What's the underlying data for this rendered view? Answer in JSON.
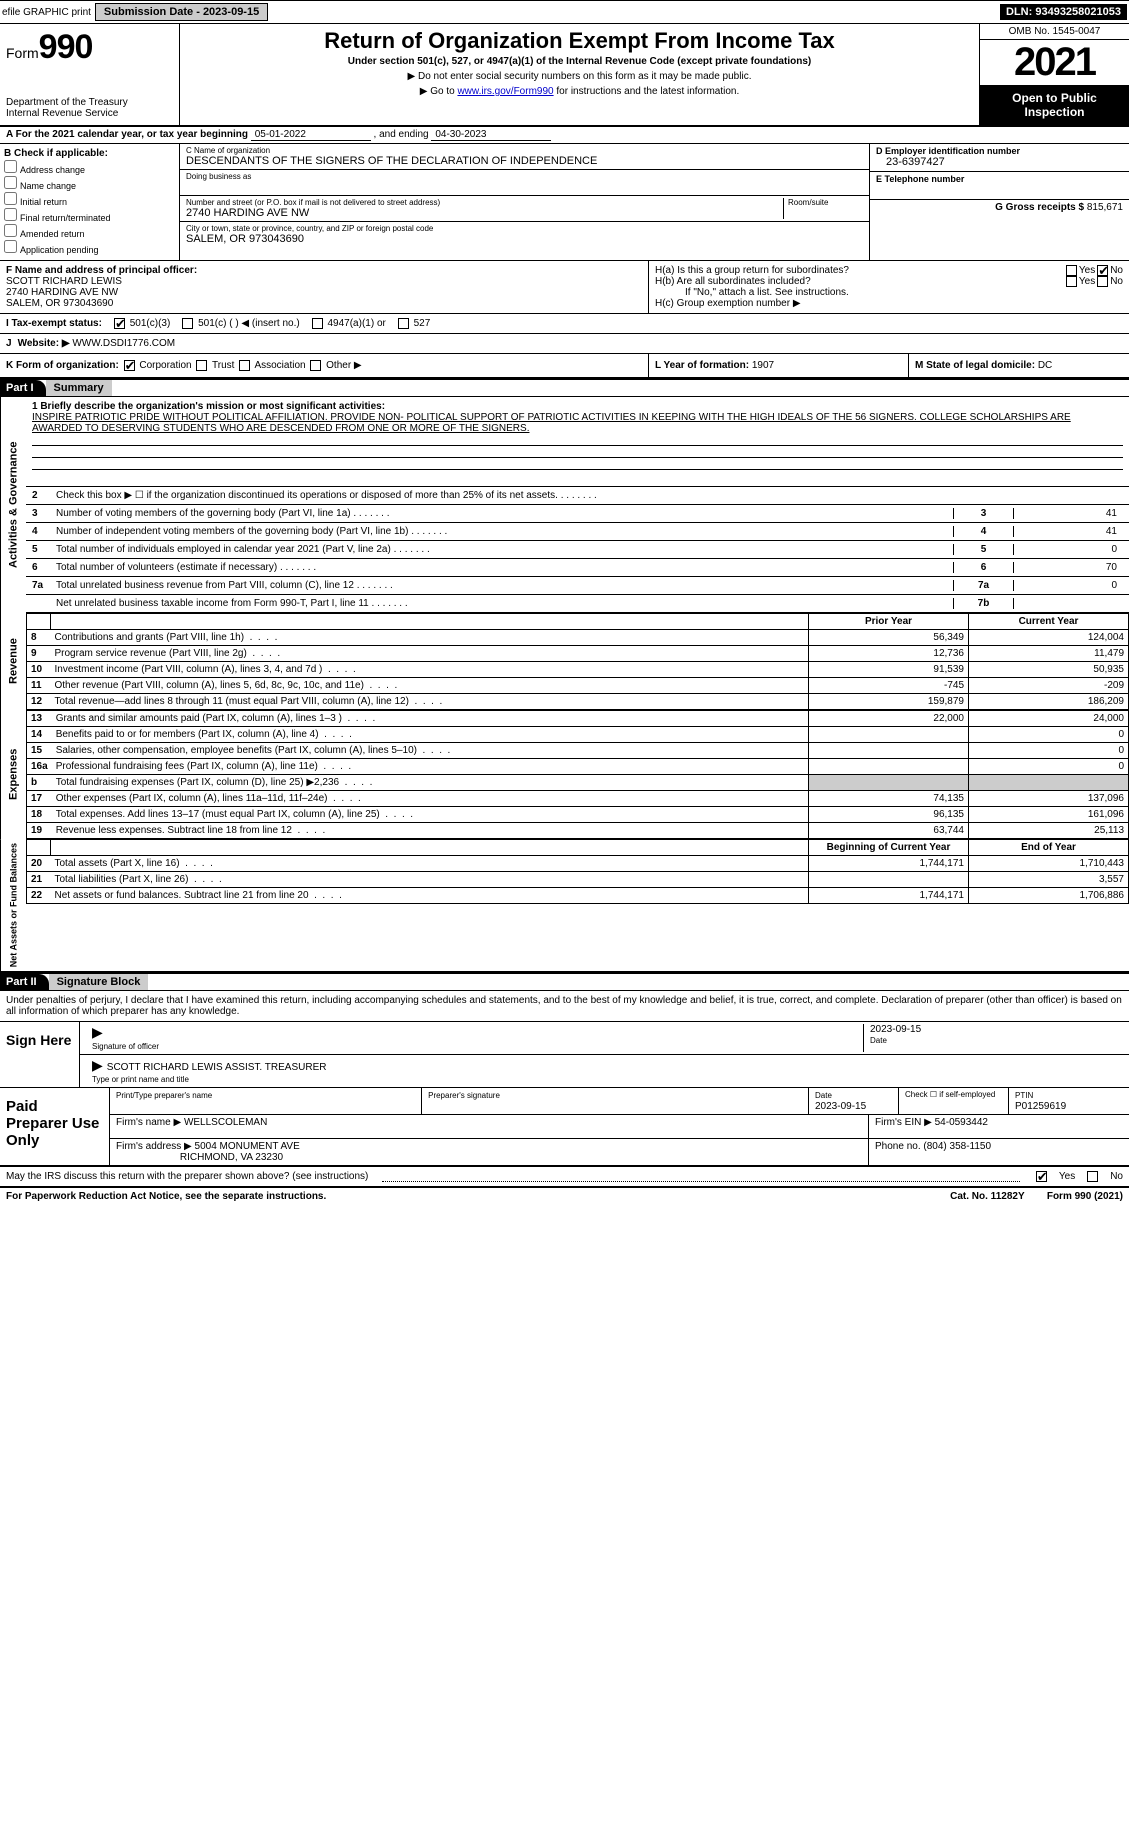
{
  "colors": {
    "black": "#000000",
    "white": "#ffffff",
    "gray": "#cccccc",
    "link": "#0000cc"
  },
  "topbar": {
    "efile_label": "efile GRAPHIC print",
    "submission_label": "Submission Date - 2023-09-15",
    "dln": "DLN: 93493258021053"
  },
  "header": {
    "form_prefix": "Form",
    "form_number": "990",
    "dept": "Department of the Treasury",
    "irs": "Internal Revenue Service",
    "title": "Return of Organization Exempt From Income Tax",
    "sub": "Under section 501(c), 527, or 4947(a)(1) of the Internal Revenue Code (except private foundations)",
    "note1": "▶ Do not enter social security numbers on this form as it may be made public.",
    "note2_pre": "▶ Go to ",
    "note2_link": "www.irs.gov/Form990",
    "note2_post": " for instructions and the latest information.",
    "omb": "OMB No. 1545-0047",
    "year": "2021",
    "openpub": "Open to Public Inspection"
  },
  "row_a": {
    "text_pre": "A For the 2021 calendar year, or tax year beginning ",
    "begin": "05-01-2022",
    "mid": " , and ending ",
    "end": "04-30-2023"
  },
  "col_b": {
    "hdr": "B Check if applicable:",
    "opts": [
      "Address change",
      "Name change",
      "Initial return",
      "Final return/terminated",
      "Amended return",
      "Application pending"
    ]
  },
  "col_c": {
    "name_lbl": "C Name of organization",
    "name": "DESCENDANTS OF THE SIGNERS OF THE DECLARATION OF INDEPENDENCE",
    "dba_lbl": "Doing business as",
    "dba": "",
    "street_lbl": "Number and street (or P.O. box if mail is not delivered to street address)",
    "room_lbl": "Room/suite",
    "street": "2740 HARDING AVE NW",
    "city_lbl": "City or town, state or province, country, and ZIP or foreign postal code",
    "city": "SALEM, OR  973043690"
  },
  "col_d": {
    "d_lbl": "D Employer identification number",
    "d_val": "23-6397427",
    "e_lbl": "E Telephone number",
    "e_val": "",
    "g_lbl": "G Gross receipts $",
    "g_val": "815,671"
  },
  "sec_f": {
    "f_lbl": "F Name and address of principal officer:",
    "f_name": "SCOTT RICHARD LEWIS",
    "f_addr1": "2740 HARDING AVE NW",
    "f_addr2": "SALEM, OR  973043690",
    "ha_lbl": "H(a)  Is this a group return for subordinates?",
    "hb_lbl": "H(b)  Are all subordinates included?",
    "hb_note": "If \"No,\" attach a list. See instructions.",
    "hc_lbl": "H(c)  Group exemption number ▶",
    "yes": "Yes",
    "no": "No"
  },
  "status": {
    "i_lbl": "I  Tax-exempt status:",
    "o1": "501(c)(3)",
    "o2": "501(c) (   ) ◀ (insert no.)",
    "o3": "4947(a)(1) or",
    "o4": "527"
  },
  "website": {
    "j_lbl": "J",
    "lbl": "Website: ▶",
    "val": "WWW.DSDI1776.COM"
  },
  "k_row": {
    "k_lbl": "K Form of organization:",
    "corp": "Corporation",
    "trust": "Trust",
    "assoc": "Association",
    "other": "Other ▶",
    "l_lbl": "L Year of formation:",
    "l_val": "1907",
    "m_lbl": "M State of legal domicile:",
    "m_val": "DC"
  },
  "part1": {
    "hdr": "Part I",
    "title": "Summary",
    "line1_lbl": "1  Briefly describe the organization's mission or most significant activities:",
    "mission": "INSPIRE PATRIOTIC PRIDE WITHOUT POLITICAL AFFILIATION. PROVIDE NON- POLITICAL SUPPORT OF PATRIOTIC ACTIVITIES IN KEEPING WITH THE HIGH IDEALS OF THE 56 SIGNERS. COLLEGE SCHOLARSHIPS ARE AWARDED TO DESERVING STUDENTS WHO ARE DESCENDED FROM ONE OR MORE OF THE SIGNERS.",
    "side_gov": "Activities & Governance",
    "side_rev": "Revenue",
    "side_exp": "Expenses",
    "side_net": "Net Assets or Fund Balances",
    "gov_lines": [
      {
        "n": "2",
        "t": "Check this box ▶ ☐ if the organization discontinued its operations or disposed of more than 25% of its net assets.",
        "box": "",
        "val": ""
      },
      {
        "n": "3",
        "t": "Number of voting members of the governing body (Part VI, line 1a)",
        "box": "3",
        "val": "41"
      },
      {
        "n": "4",
        "t": "Number of independent voting members of the governing body (Part VI, line 1b)",
        "box": "4",
        "val": "41"
      },
      {
        "n": "5",
        "t": "Total number of individuals employed in calendar year 2021 (Part V, line 2a)",
        "box": "5",
        "val": "0"
      },
      {
        "n": "6",
        "t": "Total number of volunteers (estimate if necessary)",
        "box": "6",
        "val": "70"
      },
      {
        "n": "7a",
        "t": "Total unrelated business revenue from Part VIII, column (C), line 12",
        "box": "7a",
        "val": "0"
      },
      {
        "n": "",
        "t": "Net unrelated business taxable income from Form 990-T, Part I, line 11",
        "box": "7b",
        "val": ""
      }
    ],
    "py_hdr": "Prior Year",
    "cy_hdr": "Current Year",
    "rev_lines": [
      {
        "n": "8",
        "t": "Contributions and grants (Part VIII, line 1h)",
        "py": "56,349",
        "cy": "124,004"
      },
      {
        "n": "9",
        "t": "Program service revenue (Part VIII, line 2g)",
        "py": "12,736",
        "cy": "11,479"
      },
      {
        "n": "10",
        "t": "Investment income (Part VIII, column (A), lines 3, 4, and 7d )",
        "py": "91,539",
        "cy": "50,935"
      },
      {
        "n": "11",
        "t": "Other revenue (Part VIII, column (A), lines 5, 6d, 8c, 9c, 10c, and 11e)",
        "py": "-745",
        "cy": "-209"
      },
      {
        "n": "12",
        "t": "Total revenue—add lines 8 through 11 (must equal Part VIII, column (A), line 12)",
        "py": "159,879",
        "cy": "186,209"
      }
    ],
    "exp_lines": [
      {
        "n": "13",
        "t": "Grants and similar amounts paid (Part IX, column (A), lines 1–3 )",
        "py": "22,000",
        "cy": "24,000"
      },
      {
        "n": "14",
        "t": "Benefits paid to or for members (Part IX, column (A), line 4)",
        "py": "",
        "cy": "0"
      },
      {
        "n": "15",
        "t": "Salaries, other compensation, employee benefits (Part IX, column (A), lines 5–10)",
        "py": "",
        "cy": "0"
      },
      {
        "n": "16a",
        "t": "Professional fundraising fees (Part IX, column (A), line 11e)",
        "py": "",
        "cy": "0"
      },
      {
        "n": "b",
        "t": "Total fundraising expenses (Part IX, column (D), line 25) ▶2,236",
        "py": "SHADE",
        "cy": "SHADE"
      },
      {
        "n": "17",
        "t": "Other expenses (Part IX, column (A), lines 11a–11d, 11f–24e)",
        "py": "74,135",
        "cy": "137,096"
      },
      {
        "n": "18",
        "t": "Total expenses. Add lines 13–17 (must equal Part IX, column (A), line 25)",
        "py": "96,135",
        "cy": "161,096"
      },
      {
        "n": "19",
        "t": "Revenue less expenses. Subtract line 18 from line 12",
        "py": "63,744",
        "cy": "25,113"
      }
    ],
    "bcy_hdr": "Beginning of Current Year",
    "eoy_hdr": "End of Year",
    "net_lines": [
      {
        "n": "20",
        "t": "Total assets (Part X, line 16)",
        "py": "1,744,171",
        "cy": "1,710,443"
      },
      {
        "n": "21",
        "t": "Total liabilities (Part X, line 26)",
        "py": "",
        "cy": "3,557"
      },
      {
        "n": "22",
        "t": "Net assets or fund balances. Subtract line 21 from line 20",
        "py": "1,744,171",
        "cy": "1,706,886"
      }
    ]
  },
  "part2": {
    "hdr": "Part II",
    "title": "Signature Block",
    "decl": "Under penalties of perjury, I declare that I have examined this return, including accompanying schedules and statements, and to the best of my knowledge and belief, it is true, correct, and complete. Declaration of preparer (other than officer) is based on all information of which preparer has any knowledge.",
    "sign_here": "Sign Here",
    "sig_lbl": "Signature of officer",
    "date_lbl": "Date",
    "sig_date": "2023-09-15",
    "name_lbl": "Type or print name and title",
    "name_val": "SCOTT RICHARD LEWIS  ASSIST. TREASURER",
    "paid_hdr": "Paid Preparer Use Only",
    "prep_name_lbl": "Print/Type preparer's name",
    "prep_sig_lbl": "Preparer's signature",
    "prep_date_lbl": "Date",
    "prep_date": "2023-09-15",
    "self_emp": "Check ☐ if self-employed",
    "ptin_lbl": "PTIN",
    "ptin": "P01259619",
    "firm_name_lbl": "Firm's name    ▶",
    "firm_name": "WELLSCOLEMAN",
    "firm_ein_lbl": "Firm's EIN ▶",
    "firm_ein": "54-0593442",
    "firm_addr_lbl": "Firm's address ▶",
    "firm_addr1": "5004 MONUMENT AVE",
    "firm_addr2": "RICHMOND, VA  23230",
    "phone_lbl": "Phone no.",
    "phone": "(804) 358-1150",
    "discuss": "May the IRS discuss this return with the preparer shown above? (see instructions)",
    "yes": "Yes",
    "no": "No"
  },
  "footer": {
    "pra": "For Paperwork Reduction Act Notice, see the separate instructions.",
    "cat": "Cat. No. 11282Y",
    "form": "Form 990 (2021)"
  }
}
